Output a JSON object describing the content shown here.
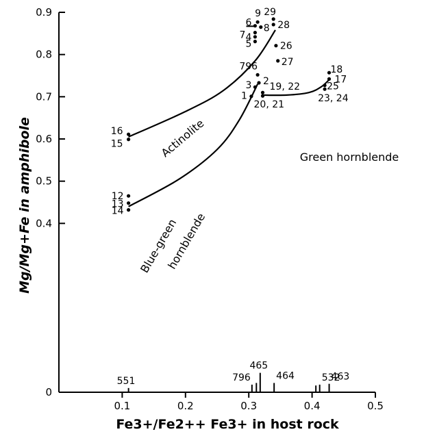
{
  "chart_data": {
    "type": "scatter",
    "xlabel": "Fe3+/Fe2++ Fe3+ in host rock",
    "ylabel": "Mg/Mg+Fe in amphibole",
    "xlim": [
      0,
      0.5
    ],
    "ylim": [
      0,
      0.9
    ],
    "x_ticks": [
      {
        "value": 0.1,
        "label": "0.1"
      },
      {
        "value": 0.2,
        "label": "0.2"
      },
      {
        "value": 0.3,
        "label": "0.3"
      },
      {
        "value": 0.4,
        "label": "0.4"
      },
      {
        "value": 0.5,
        "label": "0.5"
      }
    ],
    "x_origin_label": "0",
    "y_ticks": [
      {
        "value": 0.4,
        "label": "0.4"
      },
      {
        "value": 0.5,
        "label": "0.5"
      },
      {
        "value": 0.6,
        "label": "0.6"
      },
      {
        "value": 0.7,
        "label": "0.7"
      },
      {
        "value": 0.8,
        "label": "0.8"
      },
      {
        "value": 0.9,
        "label": "0.9"
      }
    ],
    "points": [
      {
        "label": "1",
        "x": 0.304,
        "y": 0.701
      },
      {
        "label": "2",
        "x": 0.316,
        "y": 0.733
      },
      {
        "label": "3",
        "x": 0.31,
        "y": 0.723
      },
      {
        "label": "4",
        "x": 0.31,
        "y": 0.842
      },
      {
        "label": "5",
        "x": 0.31,
        "y": 0.831
      },
      {
        "label": "6",
        "x": 0.31,
        "y": 0.868
      },
      {
        "label": "7",
        "x": 0.31,
        "y": 0.852
      },
      {
        "label": "8",
        "x": 0.319,
        "y": 0.865
      },
      {
        "label": "9",
        "x": 0.314,
        "y": 0.877
      },
      {
        "label": "12",
        "x": 0.11,
        "y": 0.465
      },
      {
        "label": "13",
        "x": 0.11,
        "y": 0.448
      },
      {
        "label": "14",
        "x": 0.11,
        "y": 0.432
      },
      {
        "label": "15",
        "x": 0.11,
        "y": 0.599
      },
      {
        "label": "16",
        "x": 0.11,
        "y": 0.611
      },
      {
        "label": "17",
        "x": 0.427,
        "y": 0.742
      },
      {
        "label": "18",
        "x": 0.427,
        "y": 0.757
      },
      {
        "label": "19, 22",
        "x": 0.322,
        "y": 0.71
      },
      {
        "label": "20, 21",
        "x": 0.322,
        "y": 0.702
      },
      {
        "label": "23, 24",
        "x": 0.42,
        "y": 0.718
      },
      {
        "label": "25",
        "x": 0.42,
        "y": 0.727
      },
      {
        "label": "26",
        "x": 0.343,
        "y": 0.821
      },
      {
        "label": "27",
        "x": 0.346,
        "y": 0.785
      },
      {
        "label": "28",
        "x": 0.339,
        "y": 0.871
      },
      {
        "label": "29",
        "x": 0.339,
        "y": 0.884
      },
      {
        "label": "796",
        "x": 0.314,
        "y": 0.752
      }
    ],
    "curves": [
      {
        "name": "Actinolite",
        "points": [
          [
            0.11,
            0.605
          ],
          [
            0.2,
            0.665
          ],
          [
            0.26,
            0.715
          ],
          [
            0.31,
            0.785
          ],
          [
            0.342,
            0.858
          ]
        ]
      },
      {
        "name": "Blue-green hornblende",
        "points": [
          [
            0.11,
            0.44
          ],
          [
            0.19,
            0.505
          ],
          [
            0.25,
            0.575
          ],
          [
            0.285,
            0.645
          ],
          [
            0.314,
            0.73
          ]
        ]
      },
      {
        "name": "Green hornblende",
        "points": [
          [
            0.32,
            0.704
          ],
          [
            0.36,
            0.704
          ],
          [
            0.395,
            0.71
          ],
          [
            0.415,
            0.724
          ],
          [
            0.428,
            0.742
          ]
        ]
      }
    ],
    "host_rocks": [
      {
        "label": "551",
        "x": 0.11,
        "bar": 0.01
      },
      {
        "label": "796",
        "x": 0.305,
        "bar": 0.018
      },
      {
        "label": "",
        "x": 0.312,
        "bar": 0.022
      },
      {
        "label": "465",
        "x": 0.318,
        "bar": 0.046
      },
      {
        "label": "464",
        "x": 0.34,
        "bar": 0.022
      },
      {
        "label": "",
        "x": 0.406,
        "bar": 0.016
      },
      {
        "label": "532",
        "x": 0.412,
        "bar": 0.018
      },
      {
        "label": "463",
        "x": 0.427,
        "bar": 0.02
      }
    ]
  }
}
